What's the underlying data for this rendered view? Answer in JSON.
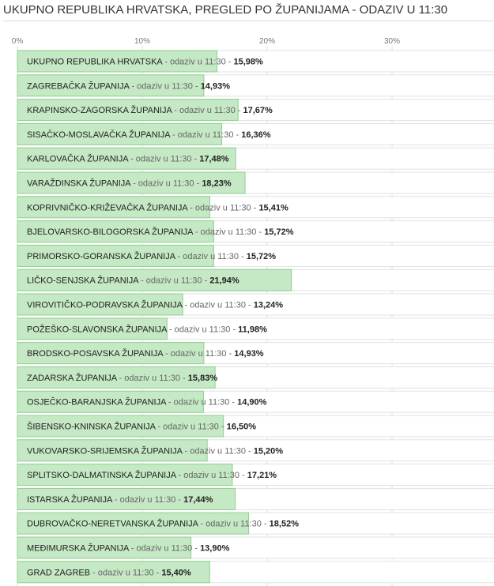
{
  "title": "UKUPNO REPUBLIKA HRVATSKA, PREGLED PO ŽUPANIJAMA - ODAZIV U 11:30",
  "chart_data": {
    "type": "bar",
    "orientation": "horizontal",
    "title": "UKUPNO REPUBLIKA HRVATSKA, PREGLED PO ŽUPANIJAMA - ODAZIV U 11:30",
    "xlabel": "",
    "ylabel": "",
    "x_ticks": [
      "0%",
      "10%",
      "20%",
      "30%"
    ],
    "xlim": [
      0,
      38
    ],
    "grid": true,
    "label_middle": " - odaziv u 11:30 - ",
    "categories": [
      "UKUPNO REPUBLIKA HRVATSKA",
      "ZAGREBAČKA ŽUPANIJA",
      "KRAPINSKO-ZAGORSKA ŽUPANIJA",
      "SISAČKO-MOSLAVAČKA ŽUPANIJA",
      "KARLOVAČKA ŽUPANIJA",
      "VARAŽDINSKA ŽUPANIJA",
      "KOPRIVNIČKO-KRIŽEVAČKA ŽUPANIJA",
      "BJELOVARSKO-BILOGORSKA ŽUPANIJA",
      "PRIMORSKO-GORANSKA ŽUPANIJA",
      "LIČKO-SENJSKA ŽUPANIJA",
      "VIROVITIČKO-PODRAVSKA ŽUPANIJA",
      "POŽEŠKO-SLAVONSKA ŽUPANIJA",
      "BRODSKO-POSAVSKA ŽUPANIJA",
      "ZADARSKA ŽUPANIJA",
      "OSJEČKO-BARANJSKA ŽUPANIJA",
      "ŠIBENSKO-KNINSKA ŽUPANIJA",
      "VUKOVARSKO-SRIJEMSKA ŽUPANIJA",
      "SPLITSKO-DALMATINSKA ŽUPANIJA",
      "ISTARSKA ŽUPANIJA",
      "DUBROVAČKO-NERETVANSKA ŽUPANIJA",
      "MEĐIMURSKA ŽUPANIJA",
      "GRAD ZAGREB"
    ],
    "values": [
      15.98,
      14.93,
      17.67,
      16.36,
      17.48,
      18.23,
      15.41,
      15.72,
      15.72,
      21.94,
      13.24,
      11.98,
      14.93,
      15.83,
      14.9,
      16.5,
      15.2,
      17.21,
      17.44,
      18.52,
      13.9,
      15.4
    ],
    "value_labels": [
      "15,98%",
      "14,93%",
      "17,67%",
      "16,36%",
      "17,48%",
      "18,23%",
      "15,41%",
      "15,72%",
      "15,72%",
      "21,94%",
      "13,24%",
      "11,98%",
      "14,93%",
      "15,83%",
      "14,90%",
      "16,50%",
      "15,20%",
      "17,21%",
      "17,44%",
      "18,52%",
      "13,90%",
      "15,40%"
    ],
    "colors": {
      "bar_fill": "#c5e8c5",
      "bar_stroke": "#8fcf8f"
    }
  }
}
